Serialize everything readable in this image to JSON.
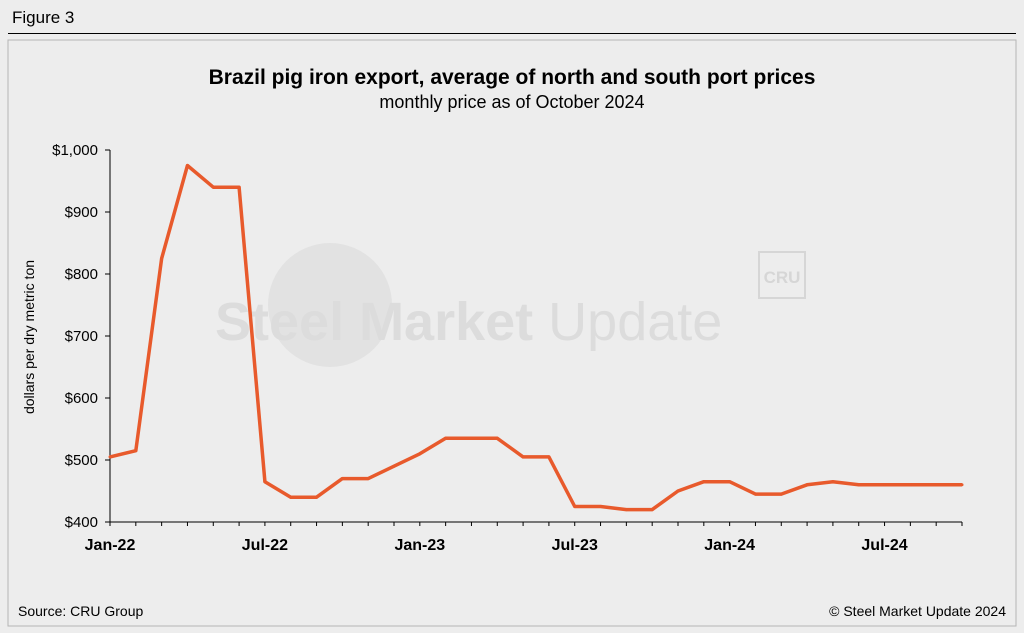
{
  "figure_label": "Figure 3",
  "source": "Source: CRU Group",
  "copyright": "© Steel Market Update 2024",
  "watermark": {
    "text_bold": "Steel Market",
    "text_light": " Update",
    "badge": "CRU"
  },
  "chart_data": {
    "type": "line",
    "title": "Brazil pig iron export, average of north and south port prices",
    "subtitle": "monthly price as of October 2024",
    "ylabel": "dollars per dry metric ton",
    "xlabel": "",
    "ylim": [
      400,
      1000
    ],
    "yticks": [
      400,
      500,
      600,
      700,
      800,
      900,
      1000
    ],
    "ytick_labels": [
      "$400",
      "$500",
      "$600",
      "$700",
      "$800",
      "$900",
      "$1,000"
    ],
    "xtick_labels": [
      "Jan-22",
      "Jul-22",
      "Jan-23",
      "Jul-23",
      "Jan-24",
      "Jul-24"
    ],
    "xtick_months": [
      "2022-01",
      "2022-07",
      "2023-01",
      "2023-07",
      "2024-01",
      "2024-07"
    ],
    "x": [
      "2022-01",
      "2022-02",
      "2022-03",
      "2022-04",
      "2022-05",
      "2022-06",
      "2022-07",
      "2022-08",
      "2022-09",
      "2022-10",
      "2022-11",
      "2022-12",
      "2023-01",
      "2023-02",
      "2023-03",
      "2023-04",
      "2023-05",
      "2023-06",
      "2023-07",
      "2023-08",
      "2023-09",
      "2023-10",
      "2023-11",
      "2023-12",
      "2024-01",
      "2024-02",
      "2024-03",
      "2024-04",
      "2024-05",
      "2024-06",
      "2024-07",
      "2024-08",
      "2024-09",
      "2024-10"
    ],
    "series": [
      {
        "values": [
          505,
          515,
          825,
          975,
          940,
          940,
          465,
          440,
          440,
          470,
          470,
          490,
          510,
          535,
          535,
          535,
          505,
          505,
          425,
          425,
          420,
          420,
          450,
          465,
          465,
          445,
          445,
          460,
          465,
          460,
          460,
          460,
          460,
          460
        ],
        "color": "#e85a2c"
      }
    ],
    "grid": false,
    "colors": {
      "line": "#e85a2c",
      "axis": "#000000",
      "panel": "#ededed"
    }
  }
}
